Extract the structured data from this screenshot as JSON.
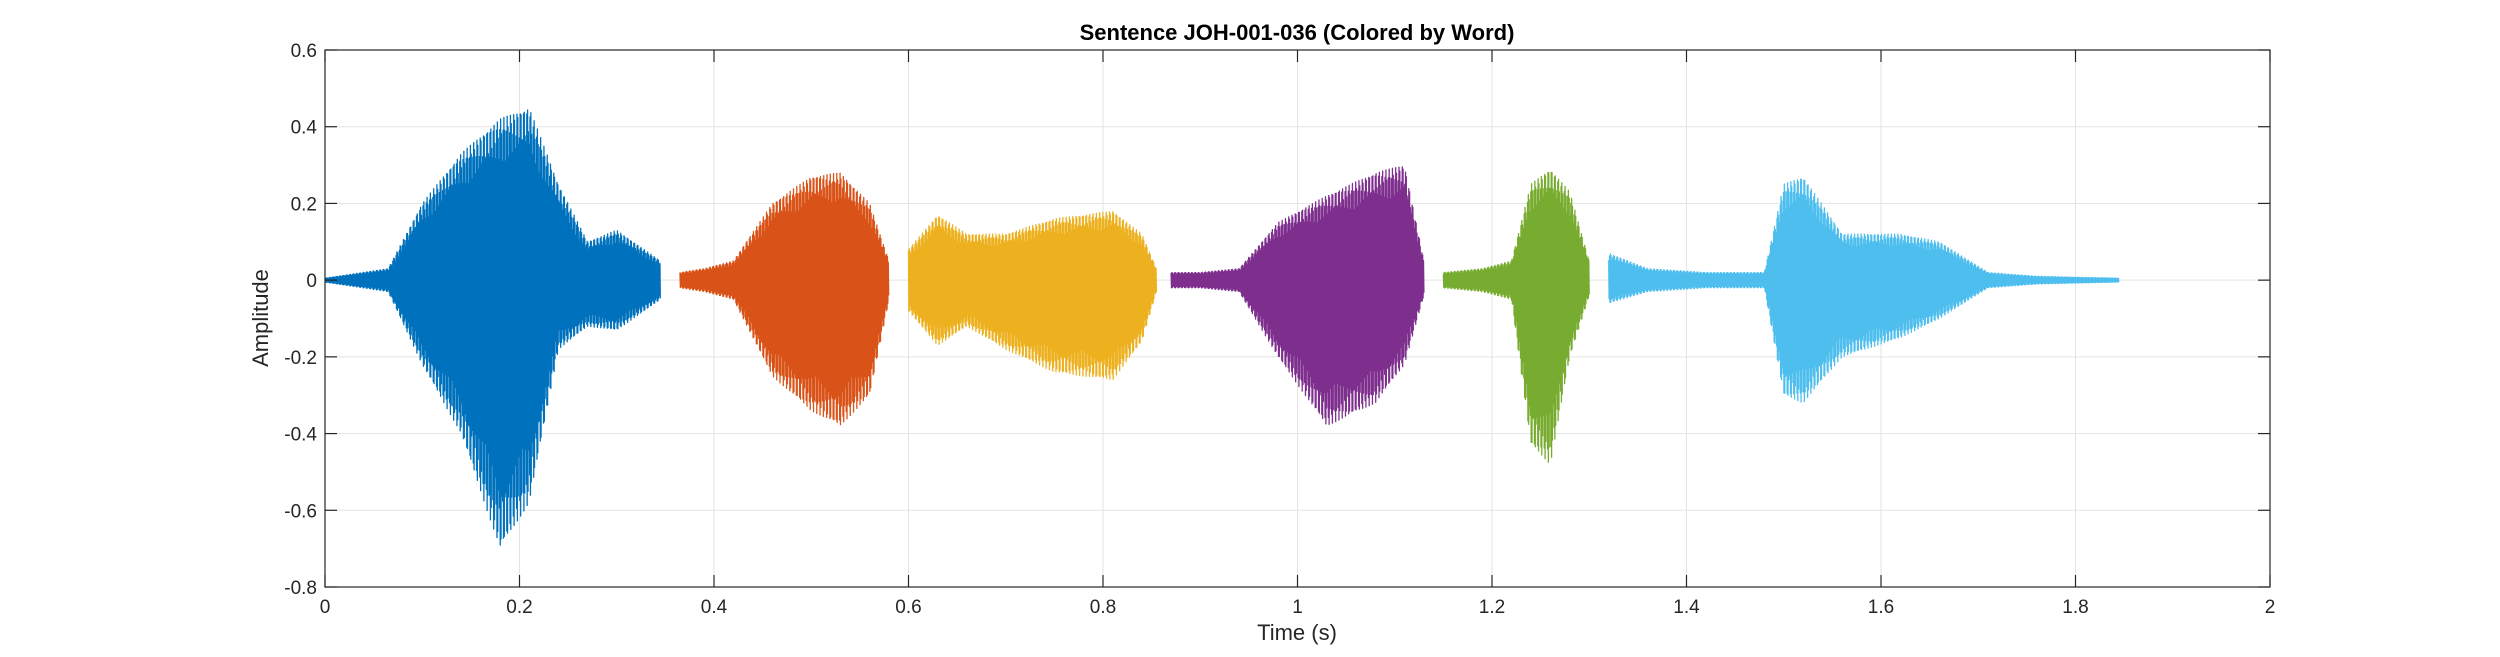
{
  "chart_data": {
    "type": "line",
    "title": "Sentence JOH-001-036 (Colored by Word)",
    "xlabel": "Time (s)",
    "ylabel": "Amplitude",
    "xlim": [
      0,
      2
    ],
    "ylim": [
      -0.8,
      0.6
    ],
    "xticks": [
      0,
      0.2,
      0.4,
      0.6,
      0.8,
      1,
      1.2,
      1.4,
      1.6,
      1.8,
      2
    ],
    "xtick_labels": [
      "0",
      "0.2",
      "0.4",
      "0.6",
      "0.8",
      "1",
      "1.2",
      "1.4",
      "1.6",
      "1.8",
      "2"
    ],
    "yticks": [
      0.6,
      0.4,
      0.2,
      0,
      -0.2,
      -0.4,
      -0.6,
      -0.8
    ],
    "ytick_labels": [
      "0.6",
      "0.4",
      "0.2",
      "0",
      "-0.2",
      "-0.4",
      "-0.6",
      "-0.8"
    ],
    "grid": true,
    "legend": "none",
    "series": [
      {
        "color": "#0072BD",
        "x": [
          0,
          0.065,
          0.1,
          0.14,
          0.18,
          0.21,
          0.24,
          0.27,
          0.3,
          0.345
        ],
        "env_max": [
          0.005,
          0.03,
          0.2,
          0.33,
          0.42,
          0.45,
          0.25,
          0.1,
          0.13,
          0.05
        ],
        "env_min": [
          -0.005,
          -0.03,
          -0.22,
          -0.4,
          -0.7,
          -0.58,
          -0.18,
          -0.12,
          -0.13,
          -0.05
        ]
      },
      {
        "color": "#D95319",
        "x": [
          0.365,
          0.39,
          0.42,
          0.46,
          0.5,
          0.53,
          0.56,
          0.58
        ],
        "env_max": [
          0.02,
          0.03,
          0.05,
          0.2,
          0.27,
          0.28,
          0.2,
          0.05
        ],
        "env_min": [
          -0.02,
          -0.03,
          -0.05,
          -0.25,
          -0.34,
          -0.38,
          -0.3,
          -0.05
        ]
      },
      {
        "color": "#EDB120",
        "x": [
          0.6,
          0.63,
          0.66,
          0.7,
          0.75,
          0.81,
          0.84,
          0.855
        ],
        "env_max": [
          0.08,
          0.17,
          0.12,
          0.12,
          0.16,
          0.18,
          0.12,
          0.03
        ],
        "env_min": [
          -0.08,
          -0.17,
          -0.12,
          -0.18,
          -0.24,
          -0.26,
          -0.16,
          -0.03
        ]
      },
      {
        "color": "#7E2F8E",
        "x": [
          0.87,
          0.9,
          0.94,
          0.98,
          1.03,
          1.08,
          1.11,
          1.13
        ],
        "env_max": [
          0.02,
          0.02,
          0.03,
          0.15,
          0.22,
          0.28,
          0.3,
          0.05
        ],
        "env_min": [
          -0.02,
          -0.02,
          -0.03,
          -0.2,
          -0.38,
          -0.32,
          -0.22,
          -0.04
        ]
      },
      {
        "color": "#77AC30",
        "x": [
          1.15,
          1.19,
          1.22,
          1.24,
          1.26,
          1.28,
          1.3
        ],
        "env_max": [
          0.02,
          0.03,
          0.05,
          0.25,
          0.29,
          0.23,
          0.05
        ],
        "env_min": [
          -0.02,
          -0.03,
          -0.05,
          -0.43,
          -0.48,
          -0.2,
          -0.04
        ]
      },
      {
        "color": "#4DBEEE",
        "x": [
          1.32,
          1.36,
          1.42,
          1.48,
          1.5,
          1.52,
          1.56,
          1.62,
          1.66,
          1.71,
          1.76,
          1.845
        ],
        "env_max": [
          0.07,
          0.03,
          0.02,
          0.02,
          0.25,
          0.27,
          0.12,
          0.12,
          0.1,
          0.02,
          0.01,
          0.005
        ],
        "env_min": [
          -0.06,
          -0.03,
          -0.02,
          -0.02,
          -0.3,
          -0.32,
          -0.2,
          -0.15,
          -0.1,
          -0.02,
          -0.01,
          -0.005
        ]
      }
    ]
  }
}
